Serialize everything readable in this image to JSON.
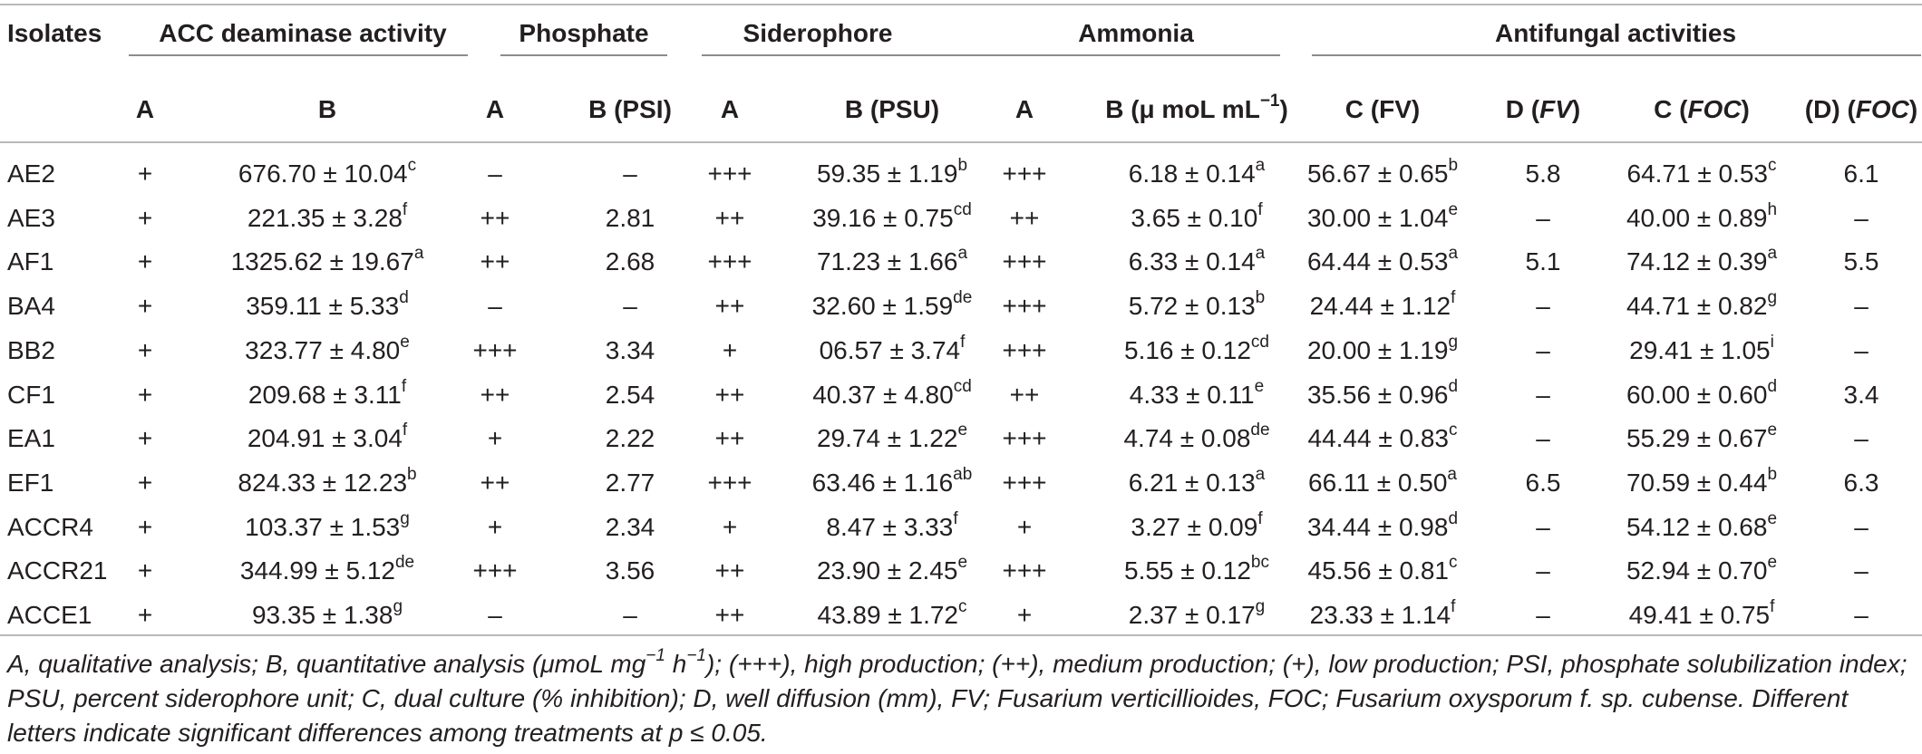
{
  "table": {
    "headers": {
      "isolates": "Isolates",
      "acc": "ACC deaminase activity",
      "phosphate": "Phosphate",
      "siderophore": "Siderophore",
      "ammonia": "Ammonia",
      "antifungal": "Antifungal activities"
    },
    "subheaders": {
      "acc_a": "A",
      "acc_b": "B",
      "pho_a": "A",
      "pho_b": "B (PSI)",
      "sid_a": "A",
      "sid_b": "B (PSU)",
      "amm_a": "A",
      "amm_b_main": "B (μ moL mL",
      "amm_b_sup": "−1",
      "amm_b_end": ")",
      "cfv": "C (FV)",
      "dfv_a": "D (",
      "dfv_b": "FV",
      "dfv_c": ")",
      "cfoc_a": "C (",
      "cfoc_b": "FOC",
      "cfoc_c": ")",
      "dfoc_a": "(D) (",
      "dfoc_b": "FOC",
      "dfoc_c": ")"
    },
    "rows": [
      {
        "isolate": "AE2",
        "acc_a": "+",
        "acc_b": "676.70 ± 10.04",
        "acc_b_sup": "c",
        "pho_a": "–",
        "pho_b": "–",
        "sid_a": "+++",
        "sid_b": "59.35 ± 1.19",
        "sid_b_sup": "b",
        "amm_a": "+++",
        "amm_b": "6.18 ± 0.14",
        "amm_b_sup": "a",
        "cfv": "56.67 ± 0.65",
        "cfv_sup": "b",
        "dfv": "5.8",
        "cfoc": "64.71 ± 0.53",
        "cfoc_sup": "c",
        "dfoc": "6.1"
      },
      {
        "isolate": "AE3",
        "acc_a": "+",
        "acc_b": "221.35 ± 3.28",
        "acc_b_sup": "f",
        "pho_a": "++",
        "pho_b": "2.81",
        "sid_a": "++",
        "sid_b": "39.16 ± 0.75",
        "sid_b_sup": "cd",
        "amm_a": "++",
        "amm_b": "3.65 ± 0.10",
        "amm_b_sup": "f",
        "cfv": "30.00 ± 1.04",
        "cfv_sup": "e",
        "dfv": "–",
        "cfoc": "40.00 ± 0.89",
        "cfoc_sup": "h",
        "dfoc": "–"
      },
      {
        "isolate": "AF1",
        "acc_a": "+",
        "acc_b": "1325.62 ± 19.67",
        "acc_b_sup": "a",
        "pho_a": "++",
        "pho_b": "2.68",
        "sid_a": "+++",
        "sid_b": "71.23 ± 1.66",
        "sid_b_sup": "a",
        "amm_a": "+++",
        "amm_b": "6.33 ± 0.14",
        "amm_b_sup": "a",
        "cfv": "64.44 ± 0.53",
        "cfv_sup": "a",
        "dfv": "5.1",
        "cfoc": "74.12 ± 0.39",
        "cfoc_sup": "a",
        "dfoc": "5.5"
      },
      {
        "isolate": "BA4",
        "acc_a": "+",
        "acc_b": "359.11 ± 5.33",
        "acc_b_sup": "d",
        "pho_a": "–",
        "pho_b": "–",
        "sid_a": "++",
        "sid_b": "32.60 ± 1.59",
        "sid_b_sup": "de",
        "amm_a": "+++",
        "amm_b": "5.72 ± 0.13",
        "amm_b_sup": "b",
        "cfv": "24.44 ± 1.12",
        "cfv_sup": "f",
        "dfv": "–",
        "cfoc": "44.71 ± 0.82",
        "cfoc_sup": "g",
        "dfoc": "–"
      },
      {
        "isolate": "BB2",
        "acc_a": "+",
        "acc_b": "323.77 ± 4.80",
        "acc_b_sup": "e",
        "pho_a": "+++",
        "pho_b": "3.34",
        "sid_a": "+",
        "sid_b": "06.57 ± 3.74",
        "sid_b_sup": "f",
        "amm_a": "+++",
        "amm_b": "5.16 ± 0.12",
        "amm_b_sup": "cd",
        "cfv": "20.00 ± 1.19",
        "cfv_sup": "g",
        "dfv": "–",
        "cfoc": "29.41 ± 1.05",
        "cfoc_sup": "i",
        "dfoc": "–"
      },
      {
        "isolate": "CF1",
        "acc_a": "+",
        "acc_b": "209.68 ± 3.11",
        "acc_b_sup": "f",
        "pho_a": "++",
        "pho_b": "2.54",
        "sid_a": "++",
        "sid_b": "40.37 ± 4.80",
        "sid_b_sup": "cd",
        "amm_a": "++",
        "amm_b": "4.33 ± 0.11",
        "amm_b_sup": "e",
        "cfv": "35.56 ± 0.96",
        "cfv_sup": "d",
        "dfv": "–",
        "cfoc": "60.00 ± 0.60",
        "cfoc_sup": "d",
        "dfoc": "3.4"
      },
      {
        "isolate": "EA1",
        "acc_a": "+",
        "acc_b": "204.91 ± 3.04",
        "acc_b_sup": "f",
        "pho_a": "+",
        "pho_b": "2.22",
        "sid_a": "++",
        "sid_b": "29.74 ± 1.22",
        "sid_b_sup": "e",
        "amm_a": "+++",
        "amm_b": "4.74 ± 0.08",
        "amm_b_sup": "de",
        "cfv": "44.44 ± 0.83",
        "cfv_sup": "c",
        "dfv": "–",
        "cfoc": "55.29 ± 0.67",
        "cfoc_sup": "e",
        "dfoc": "–"
      },
      {
        "isolate": "EF1",
        "acc_a": "+",
        "acc_b": "824.33 ± 12.23",
        "acc_b_sup": "b",
        "pho_a": "++",
        "pho_b": "2.77",
        "sid_a": "+++",
        "sid_b": "63.46 ± 1.16",
        "sid_b_sup": "ab",
        "amm_a": "+++",
        "amm_b": "6.21 ± 0.13",
        "amm_b_sup": "a",
        "cfv": "66.11 ± 0.50",
        "cfv_sup": "a",
        "dfv": "6.5",
        "cfoc": "70.59 ± 0.44",
        "cfoc_sup": "b",
        "dfoc": "6.3"
      },
      {
        "isolate": "ACCR4",
        "acc_a": "+",
        "acc_b": "103.37 ± 1.53",
        "acc_b_sup": "g",
        "pho_a": "+",
        "pho_b": "2.34",
        "sid_a": "+",
        "sid_b": "8.47 ± 3.33",
        "sid_b_sup": "f",
        "amm_a": "+",
        "amm_b": "3.27 ± 0.09",
        "amm_b_sup": "f",
        "cfv": "34.44 ± 0.98",
        "cfv_sup": "d",
        "dfv": "–",
        "cfoc": "54.12 ± 0.68",
        "cfoc_sup": "e",
        "dfoc": "–"
      },
      {
        "isolate": "ACCR21",
        "acc_a": "+",
        "acc_b": "344.99 ± 5.12",
        "acc_b_sup": "de",
        "pho_a": "+++",
        "pho_b": "3.56",
        "sid_a": "++",
        "sid_b": "23.90 ± 2.45",
        "sid_b_sup": "e",
        "amm_a": "+++",
        "amm_b": "5.55 ± 0.12",
        "amm_b_sup": "bc",
        "cfv": "45.56 ± 0.81",
        "cfv_sup": "c",
        "dfv": "–",
        "cfoc": "52.94 ± 0.70",
        "cfoc_sup": "e",
        "dfoc": "–"
      },
      {
        "isolate": "ACCE1",
        "acc_a": "+",
        "acc_b": "93.35 ± 1.38",
        "acc_b_sup": "g",
        "pho_a": "–",
        "pho_b": "–",
        "sid_a": "++",
        "sid_b": "43.89 ± 1.72",
        "sid_b_sup": "c",
        "amm_a": "+",
        "amm_b": "2.37 ± 0.17",
        "amm_b_sup": "g",
        "cfv": "23.33 ± 1.14",
        "cfv_sup": "f",
        "dfv": "–",
        "cfoc": "49.41 ± 0.75",
        "cfoc_sup": "f",
        "dfoc": "–"
      }
    ]
  },
  "caption": {
    "p1": "A, qualitative analysis; B, quantitative analysis (μmoL mg",
    "s1": "−1",
    "p2": " h",
    "s2": "−1",
    "p3": "); (+++), high production; (++), medium production; (+), low production; PSI, phosphate solubilization index; PSU, percent siderophore unit; C, dual culture (% inhibition); D, well diffusion (mm), FV; Fusarium verticillioides, FOC; Fusarium oxysporum f. sp. cubense. Different letters indicate significant differences among treatments at p ≤ 0.05."
  }
}
